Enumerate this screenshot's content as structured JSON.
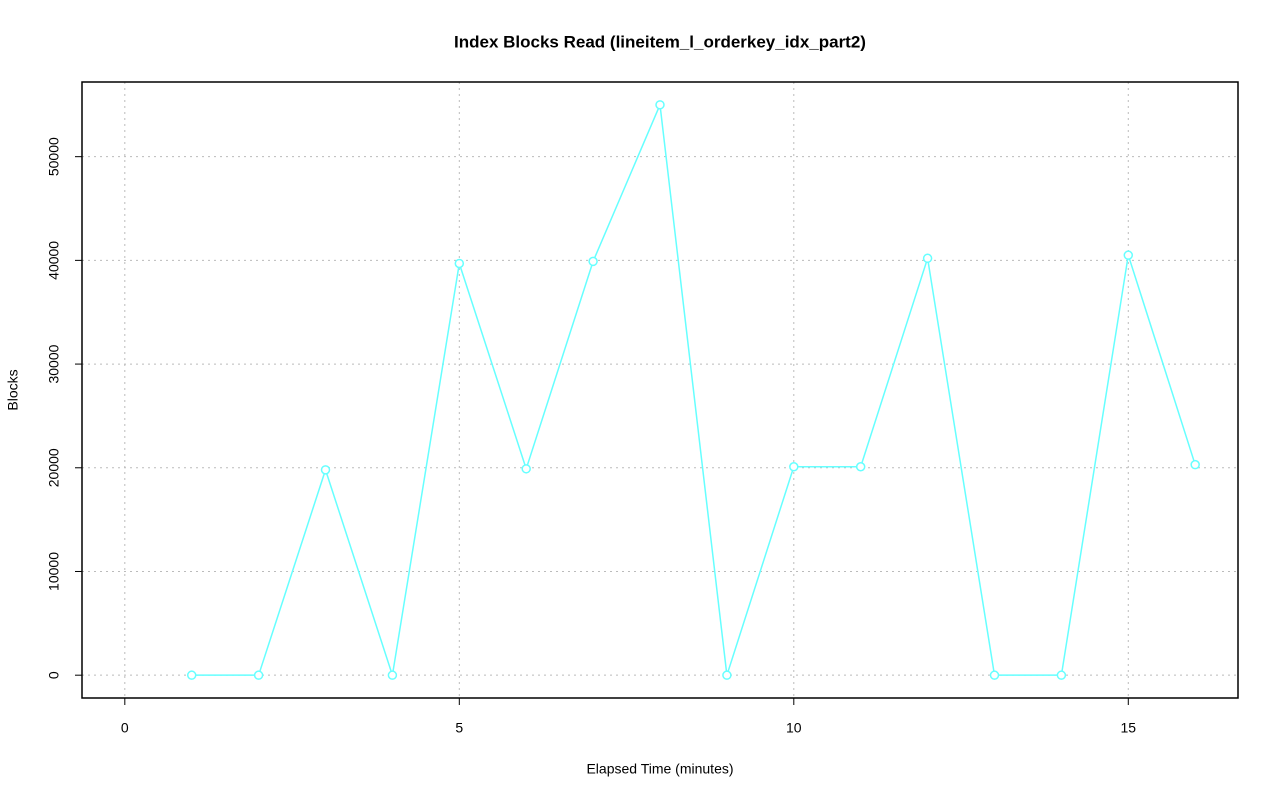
{
  "chart_data": {
    "type": "line",
    "title": "Index Blocks Read (lineitem_l_orderkey_idx_part2)",
    "x_label": "Elapsed Time (minutes)",
    "y_label": "Blocks",
    "x": [
      1,
      2,
      3,
      4,
      5,
      6,
      7,
      8,
      9,
      10,
      11,
      12,
      13,
      14,
      15,
      16
    ],
    "series": [
      {
        "name": "Blocks",
        "color": "#66ffff",
        "values": [
          0,
          0,
          19800,
          0,
          39700,
          19900,
          39900,
          55000,
          0,
          20100,
          20100,
          40200,
          0,
          0,
          40500,
          20300
        ]
      }
    ],
    "xlim": [
      -0.64,
      16.64
    ],
    "xticks": [
      0,
      5,
      10,
      15
    ],
    "ylim": [
      -2200,
      57200
    ],
    "yticks": [
      0,
      10000,
      20000,
      30000,
      40000,
      50000
    ],
    "grid": true
  }
}
